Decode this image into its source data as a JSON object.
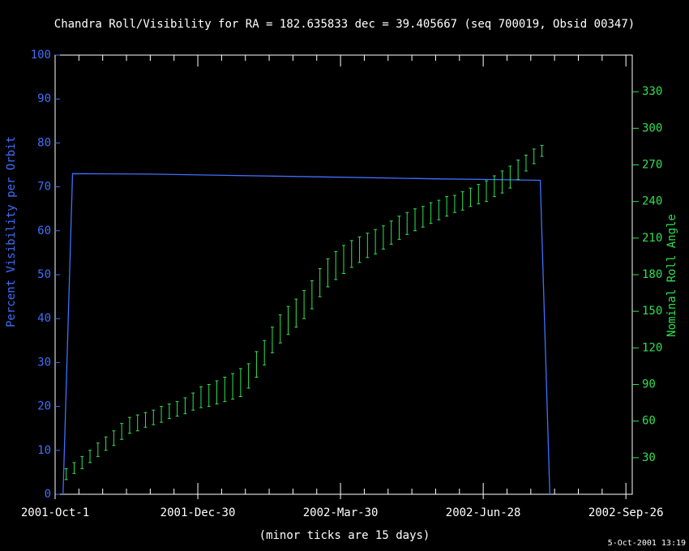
{
  "chart_data": {
    "type": "line",
    "title": "Chandra Roll/Visibility for RA = 182.635833 dec = 39.405667 (seq 700019, Obsid 00347)",
    "xlabel": "(minor ticks are 15 days)",
    "ylabel": "Percent Visibility per Orbit",
    "y2label": "Nominal Roll Angle",
    "timestamp": "5-Oct-2001 13:19",
    "xlim": [
      "2001-10-01",
      "2002-09-30"
    ],
    "xticks": [
      {
        "value": "2001-10-01",
        "label": "2001-Oct-1"
      },
      {
        "value": "2001-12-30",
        "label": "2001-Dec-30"
      },
      {
        "value": "2002-03-30",
        "label": "2002-Mar-30"
      },
      {
        "value": "2002-06-28",
        "label": "2002-Jun-28"
      },
      {
        "value": "2002-09-26",
        "label": "2002-Sep-26"
      }
    ],
    "xminorticks": [
      "2001-10-16",
      "2001-10-31",
      "2001-11-15",
      "2001-11-30",
      "2001-12-15",
      "2002-01-14",
      "2002-01-29",
      "2002-02-13",
      "2002-02-28",
      "2002-03-15",
      "2002-04-14",
      "2002-04-29",
      "2002-05-14",
      "2002-05-29",
      "2002-06-13",
      "2002-07-13",
      "2002-07-28",
      "2002-08-12",
      "2002-08-27",
      "2002-09-11"
    ],
    "ylim": [
      0,
      100
    ],
    "yticks": [
      0,
      10,
      20,
      30,
      40,
      50,
      60,
      70,
      80,
      90,
      100
    ],
    "y2lim": [
      0,
      360
    ],
    "y2ticks": [
      30,
      60,
      90,
      120,
      150,
      180,
      210,
      240,
      270,
      300,
      330
    ],
    "ycolor": "#3f6fff",
    "y2color": "#30e050",
    "series": [
      {
        "type": "line",
        "color": "#3f6fff",
        "x": [
          "2001-10-06",
          "2001-10-12",
          "2001-12-01",
          "2002-03-30",
          "2002-06-01",
          "2002-06-28",
          "2002-08-03",
          "2002-08-09"
        ],
        "values": [
          0,
          73,
          72.9,
          72.2,
          71.8,
          71.7,
          71.5,
          0
        ]
      },
      {
        "type": "errorbar",
        "axis": "y2",
        "color": "#30e050",
        "x": [
          "2001-10-08",
          "2001-10-13",
          "2001-10-18",
          "2001-10-23",
          "2001-10-28",
          "2001-11-02",
          "2001-11-07",
          "2001-11-12",
          "2001-11-17",
          "2001-11-22",
          "2001-11-27",
          "2001-12-02",
          "2001-12-07",
          "2001-12-12",
          "2001-12-17",
          "2001-12-22",
          "2001-12-27",
          "2002-01-01",
          "2002-01-06",
          "2002-01-11",
          "2002-01-16",
          "2002-01-21",
          "2002-01-26",
          "2002-01-31",
          "2002-02-05",
          "2002-02-10",
          "2002-02-15",
          "2002-02-20",
          "2002-02-25",
          "2002-03-02",
          "2002-03-07",
          "2002-03-12",
          "2002-03-17",
          "2002-03-22",
          "2002-03-27",
          "2002-04-01",
          "2002-04-06",
          "2002-04-11",
          "2002-04-16",
          "2002-04-21",
          "2002-04-26",
          "2002-05-01",
          "2002-05-06",
          "2002-05-11",
          "2002-05-16",
          "2002-05-21",
          "2002-05-26",
          "2002-05-31",
          "2002-06-05",
          "2002-06-10",
          "2002-06-15",
          "2002-06-20",
          "2002-06-25",
          "2002-06-30",
          "2002-07-05",
          "2002-07-10",
          "2002-07-15",
          "2002-07-20",
          "2002-07-25",
          "2002-07-30",
          "2002-08-04"
        ],
        "low": [
          12,
          17,
          21,
          26,
          31,
          36,
          40,
          45,
          50,
          52,
          55,
          57,
          59,
          62,
          64,
          66,
          69,
          71,
          72,
          74,
          76,
          78,
          80,
          87,
          96,
          106,
          116,
          124,
          131,
          137,
          144,
          152,
          162,
          170,
          176,
          181,
          186,
          190,
          194,
          197,
          201,
          205,
          209,
          213,
          216,
          219,
          222,
          225,
          228,
          231,
          233,
          236,
          238,
          240,
          244,
          247,
          251,
          258,
          265,
          271,
          277
        ],
        "high": [
          21,
          26,
          31,
          36,
          42,
          47,
          52,
          58,
          63,
          65,
          67,
          69,
          72,
          74,
          76,
          79,
          83,
          88,
          90,
          93,
          96,
          99,
          103,
          107,
          117,
          126,
          137,
          147,
          154,
          160,
          167,
          175,
          185,
          193,
          199,
          204,
          208,
          211,
          214,
          217,
          220,
          224,
          228,
          231,
          234,
          236,
          239,
          241,
          244,
          245,
          248,
          251,
          254,
          257,
          261,
          265,
          269,
          274,
          278,
          283,
          286
        ]
      }
    ]
  }
}
